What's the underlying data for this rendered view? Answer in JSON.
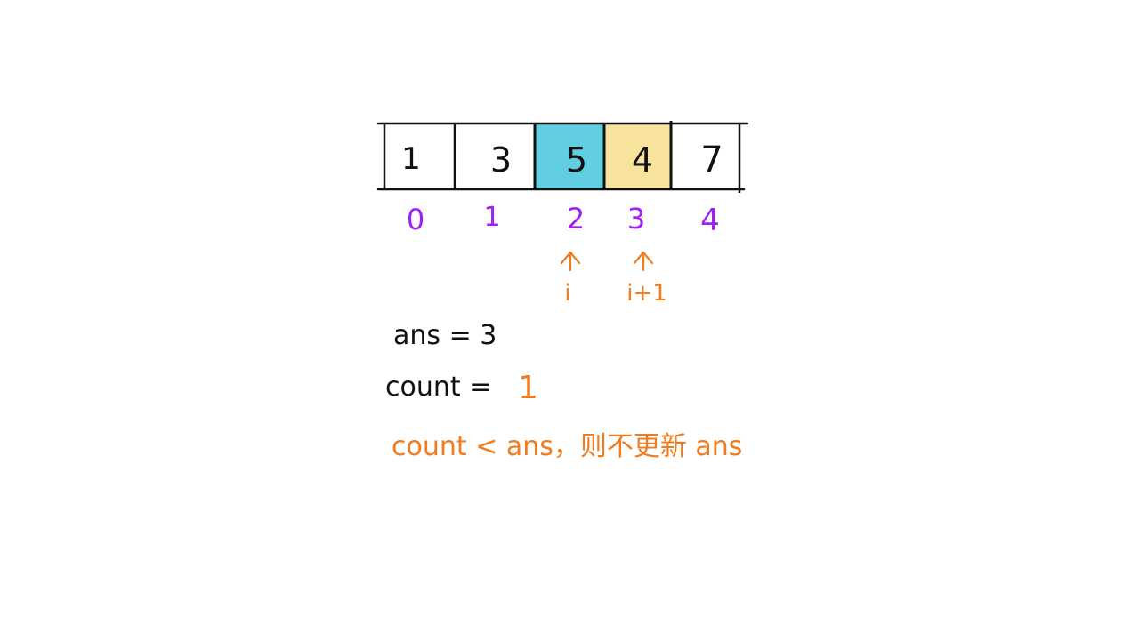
{
  "array": {
    "cells": [
      {
        "value": "1",
        "fill": "#ffffff"
      },
      {
        "value": "3",
        "fill": "#ffffff"
      },
      {
        "value": "5",
        "fill": "#62cfe1"
      },
      {
        "value": "4",
        "fill": "#f8e39c"
      },
      {
        "value": "7",
        "fill": "#ffffff"
      }
    ],
    "indices": [
      "0",
      "1",
      "2",
      "3",
      "4"
    ]
  },
  "pointers": {
    "i": {
      "label": "i",
      "index": 2
    },
    "i_plus_1": {
      "label": "i+1",
      "index": 3
    }
  },
  "notes": {
    "ans_line": "ans = 3",
    "count_label": "count =",
    "count_value": "1",
    "conclusion": "count < ans，则不更新 ans"
  },
  "colors": {
    "ink": "#111111",
    "index": "#a020f0",
    "accent": "#f07c1e",
    "cell_i": "#62cfe1",
    "cell_i_plus_1": "#f8e39c"
  }
}
